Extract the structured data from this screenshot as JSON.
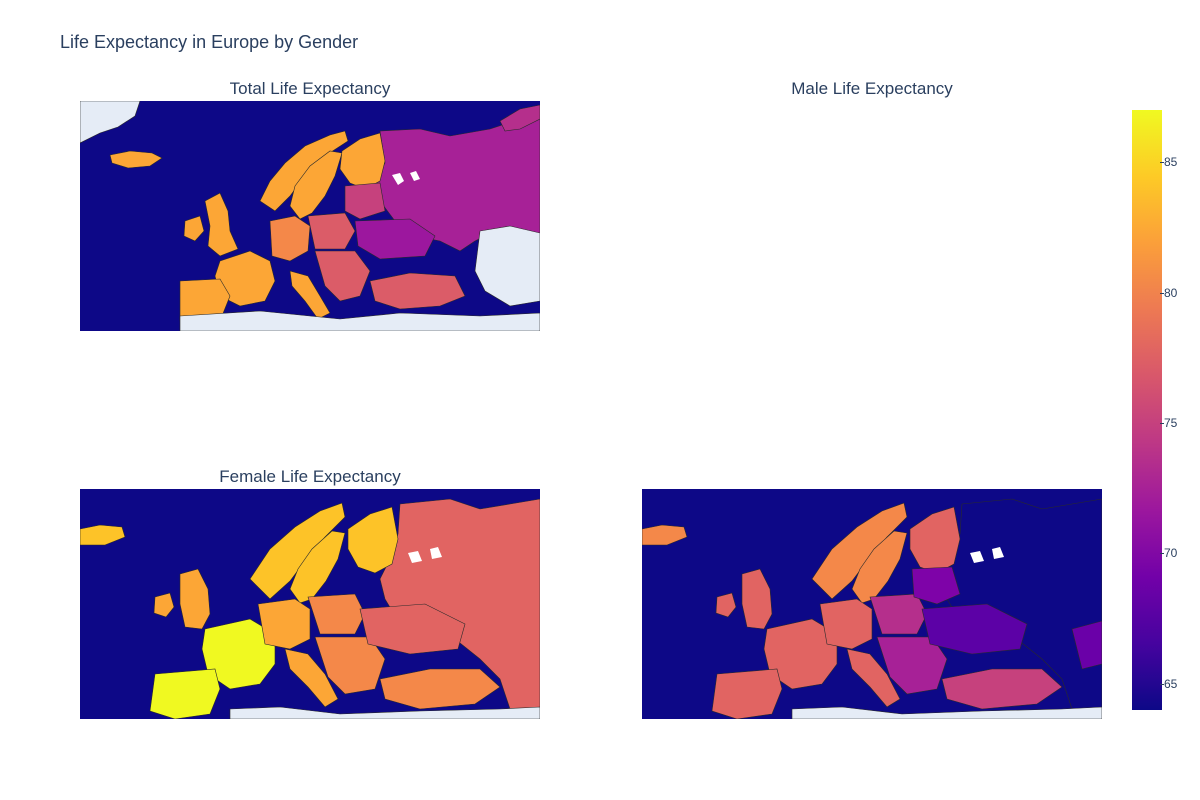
{
  "title": "Life Expectancy in Europe by Gender",
  "panels": {
    "total": {
      "label": "Total Life Expectancy"
    },
    "male": {
      "label": "Male Life Expectancy"
    },
    "female": {
      "label": "Female Life Expectancy"
    }
  },
  "colorbar": {
    "colorscale": "Plasma",
    "range": [
      64,
      87
    ],
    "tick_labels": [
      "85",
      "80",
      "75",
      "70",
      "65"
    ],
    "tick_values": [
      85,
      80,
      75,
      70,
      65
    ]
  },
  "colors": {
    "ocean": "#0d0887",
    "land_no_data": "#e5ecf6",
    "border": "#2b2b2b",
    "title": "#2a3f5f"
  }
}
